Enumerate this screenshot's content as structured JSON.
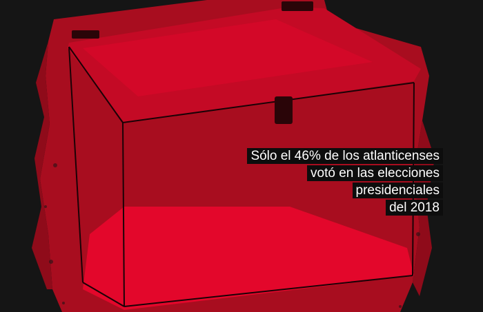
{
  "caption": {
    "lines": [
      "Sólo el 46% de los atlanticenses",
      "votó en las elecciones",
      "presidenciales",
      "del 2018"
    ]
  },
  "colors": {
    "background": "#151515",
    "ink_red": "#a80d1f",
    "bright_red": "#e3072b",
    "caption_bg": "#0d0d0d",
    "caption_text": "#ffffff"
  }
}
